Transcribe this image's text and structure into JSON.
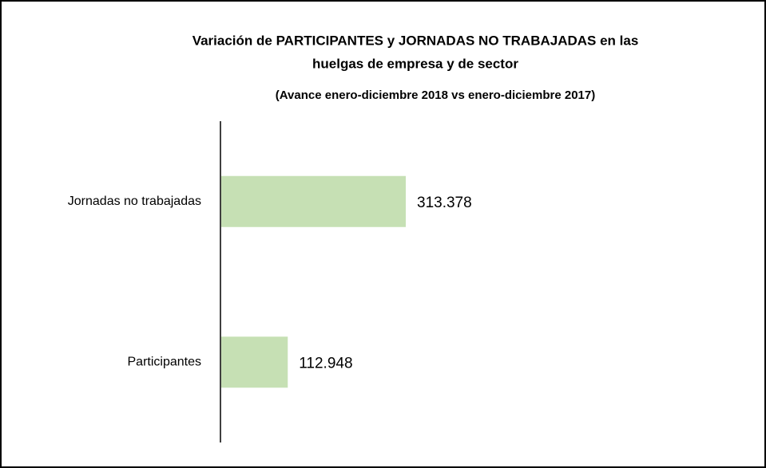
{
  "chart_data": {
    "type": "bar",
    "orientation": "horizontal",
    "title": [
      "Variación de PARTICIPANTES  y JORNADAS NO TRABAJADAS  en las",
      "huelgas de empresa y de sector"
    ],
    "subtitle": "(Avance enero-diciembre 2018 vs enero-diciembre 2017)",
    "categories": [
      "Jornadas no trabajadas",
      "Participantes"
    ],
    "values": [
      313378,
      112948
    ],
    "value_labels": [
      "313.378",
      "112.948"
    ],
    "color": "#c6e0b4"
  }
}
